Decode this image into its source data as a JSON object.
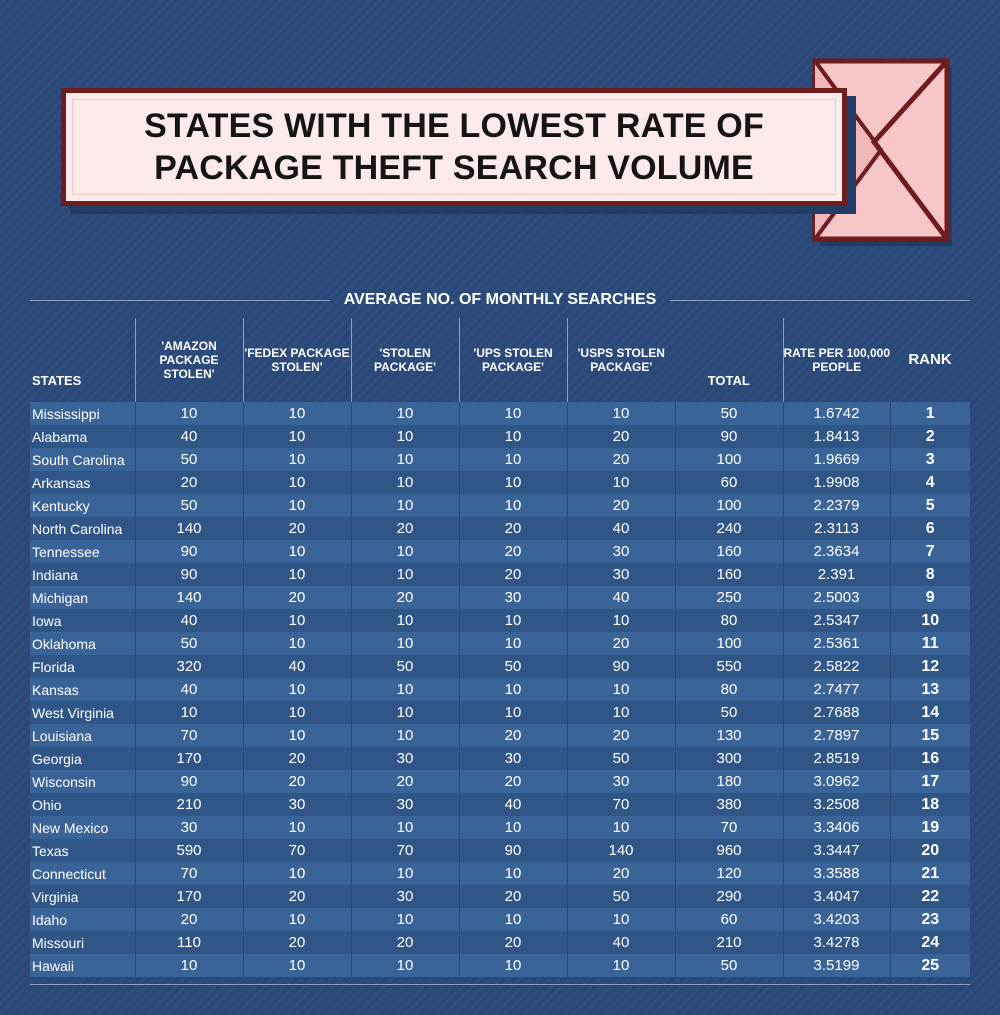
{
  "title": {
    "line1": "STATES WITH THE LOWEST RATE OF",
    "line2": "PACKAGE THEFT SEARCH VOLUME"
  },
  "section_label": "AVERAGE NO. OF MONTHLY SEARCHES",
  "colors": {
    "background": "#2a4878",
    "row_light": "#3a6497",
    "row_dark": "#2f5687",
    "banner_fill": "#fdebeb",
    "banner_border": "#6e1c1e",
    "envelope_fill": "#f6c6c8"
  },
  "icon": "envelope-icon",
  "chart_data": {
    "type": "table",
    "title": "STATES WITH THE LOWEST RATE OF PACKAGE THEFT SEARCH VOLUME",
    "columns": [
      "STATES",
      "'AMAZON PACKAGE STOLEN'",
      "'FEDEX PACKAGE STOLEN'",
      "'STOLEN PACKAGE'",
      "'UPS STOLEN PACKAGE'",
      "'USPS STOLEN PACKAGE'",
      "TOTAL",
      "RATE PER 100,000 PEOPLE",
      "RANK"
    ],
    "rows": [
      [
        "Mississippi",
        "10",
        "10",
        "10",
        "10",
        "10",
        "50",
        "1.6742",
        "1"
      ],
      [
        "Alabama",
        "40",
        "10",
        "10",
        "10",
        "20",
        "90",
        "1.8413",
        "2"
      ],
      [
        "South Carolina",
        "50",
        "10",
        "10",
        "10",
        "20",
        "100",
        "1.9669",
        "3"
      ],
      [
        "Arkansas",
        "20",
        "10",
        "10",
        "10",
        "10",
        "60",
        "1.9908",
        "4"
      ],
      [
        "Kentucky",
        "50",
        "10",
        "10",
        "10",
        "20",
        "100",
        "2.2379",
        "5"
      ],
      [
        "North Carolina",
        "140",
        "20",
        "20",
        "20",
        "40",
        "240",
        "2.3113",
        "6"
      ],
      [
        "Tennessee",
        "90",
        "10",
        "10",
        "20",
        "30",
        "160",
        "2.3634",
        "7"
      ],
      [
        "Indiana",
        "90",
        "10",
        "10",
        "20",
        "30",
        "160",
        "2.391",
        "8"
      ],
      [
        "Michigan",
        "140",
        "20",
        "20",
        "30",
        "40",
        "250",
        "2.5003",
        "9"
      ],
      [
        "Iowa",
        "40",
        "10",
        "10",
        "10",
        "10",
        "80",
        "2.5347",
        "10"
      ],
      [
        "Oklahoma",
        "50",
        "10",
        "10",
        "10",
        "20",
        "100",
        "2.5361",
        "11"
      ],
      [
        "Florida",
        "320",
        "40",
        "50",
        "50",
        "90",
        "550",
        "2.5822",
        "12"
      ],
      [
        "Kansas",
        "40",
        "10",
        "10",
        "10",
        "10",
        "80",
        "2.7477",
        "13"
      ],
      [
        "West Virginia",
        "10",
        "10",
        "10",
        "10",
        "10",
        "50",
        "2.7688",
        "14"
      ],
      [
        "Louisiana",
        "70",
        "10",
        "10",
        "20",
        "20",
        "130",
        "2.7897",
        "15"
      ],
      [
        "Georgia",
        "170",
        "20",
        "30",
        "30",
        "50",
        "300",
        "2.8519",
        "16"
      ],
      [
        "Wisconsin",
        "90",
        "20",
        "20",
        "20",
        "30",
        "180",
        "3.0962",
        "17"
      ],
      [
        "Ohio",
        "210",
        "30",
        "30",
        "40",
        "70",
        "380",
        "3.2508",
        "18"
      ],
      [
        "New Mexico",
        "30",
        "10",
        "10",
        "10",
        "10",
        "70",
        "3.3406",
        "19"
      ],
      [
        "Texas",
        "590",
        "70",
        "70",
        "90",
        "140",
        "960",
        "3.3447",
        "20"
      ],
      [
        "Connecticut",
        "70",
        "10",
        "10",
        "10",
        "20",
        "120",
        "3.3588",
        "21"
      ],
      [
        "Virginia",
        "170",
        "20",
        "30",
        "20",
        "50",
        "290",
        "3.4047",
        "22"
      ],
      [
        "Idaho",
        "20",
        "10",
        "10",
        "10",
        "10",
        "60",
        "3.4203",
        "23"
      ],
      [
        "Missouri",
        "110",
        "20",
        "20",
        "20",
        "40",
        "210",
        "3.4278",
        "24"
      ],
      [
        "Hawaii",
        "10",
        "10",
        "10",
        "10",
        "10",
        "50",
        "3.5199",
        "25"
      ]
    ]
  }
}
